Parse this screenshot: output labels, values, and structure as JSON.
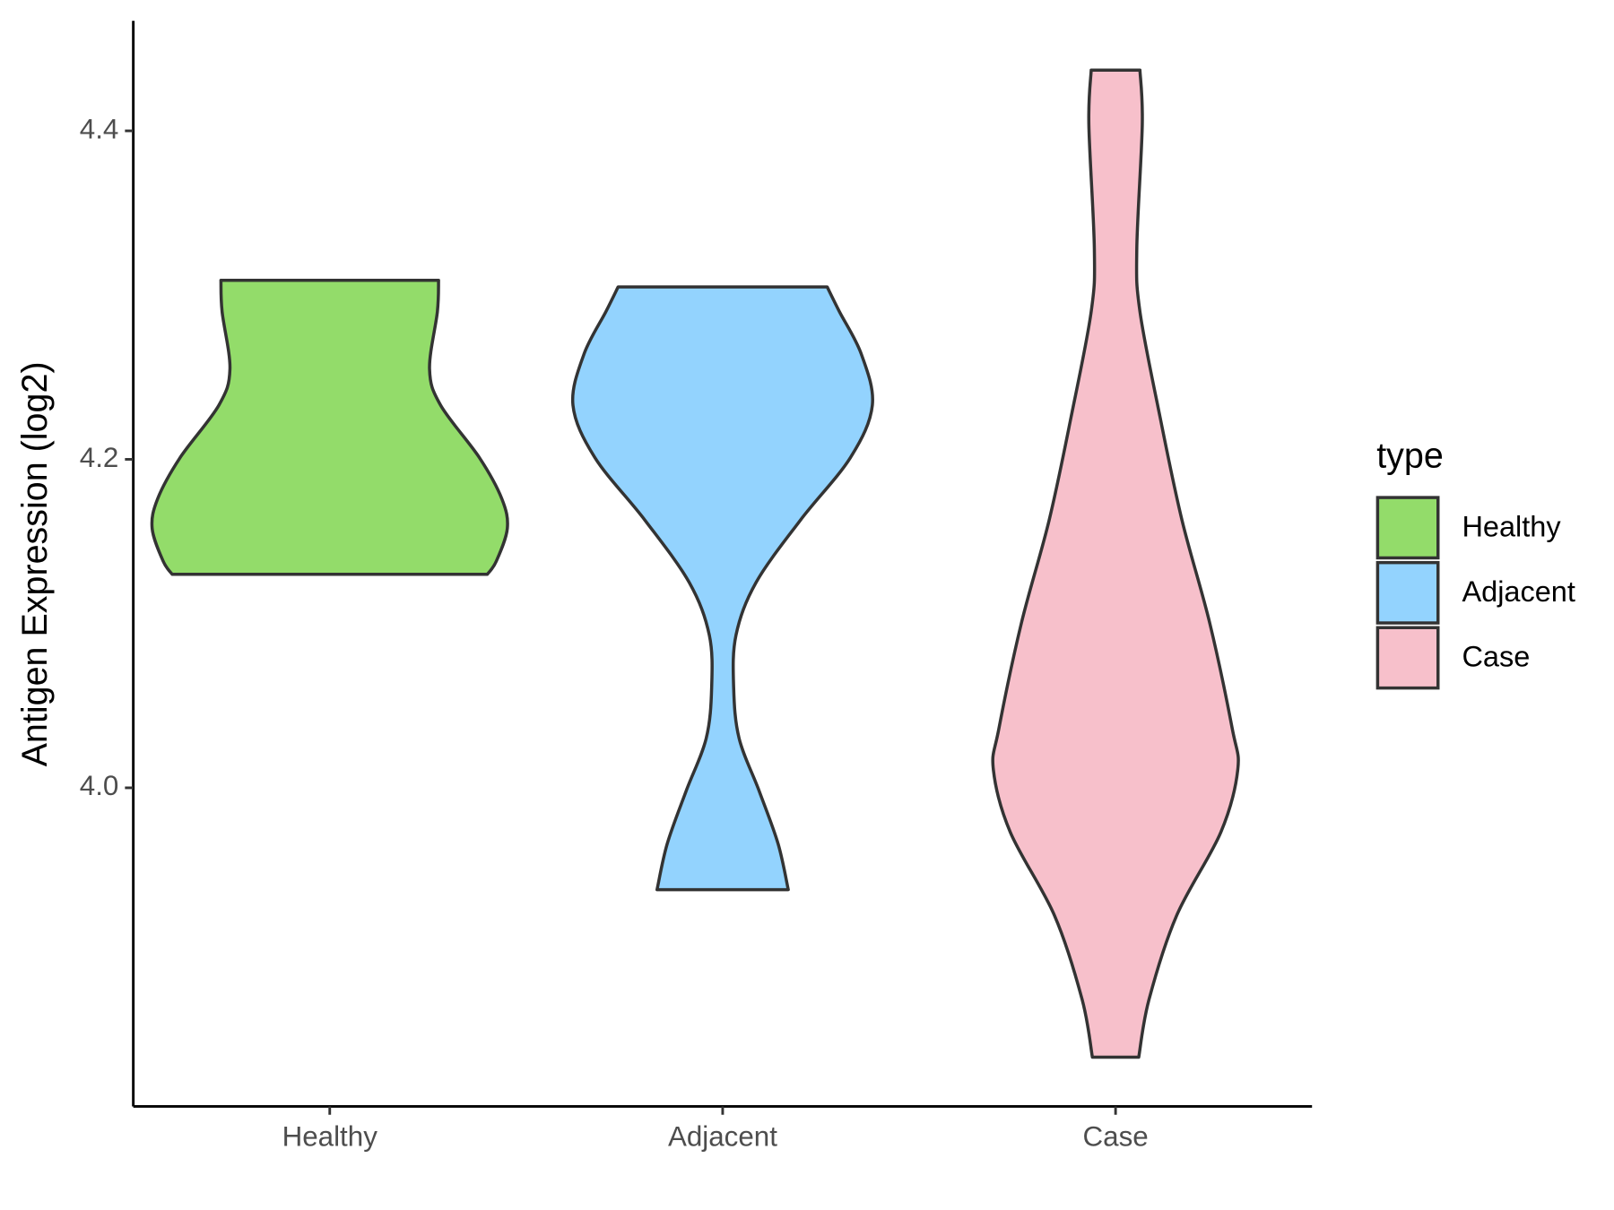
{
  "chart_data": {
    "type": "violin",
    "y_label": "Antigen Expression (log2)",
    "categories": [
      "Healthy",
      "Adjacent",
      "Case"
    ],
    "legend_title": "type",
    "legend_position": "right",
    "ylim": [
      3.806,
      4.467
    ],
    "yticks": [
      {
        "value": 4.0,
        "label": "4.0"
      },
      {
        "value": 4.2,
        "label": "4.2"
      },
      {
        "value": 4.4,
        "label": "4.4"
      }
    ],
    "series": [
      {
        "name": "Healthy",
        "color": "#93dc6a",
        "y": [
          4.309,
          4.29,
          4.255,
          4.233,
          4.201,
          4.176,
          4.158,
          4.138,
          4.13
        ],
        "density": [
          0.277,
          0.274,
          0.254,
          0.282,
          0.381,
          0.438,
          0.452,
          0.424,
          0.401
        ]
      },
      {
        "name": "Adjacent",
        "color": "#93d3fe",
        "y": [
          4.305,
          4.29,
          4.264,
          4.233,
          4.201,
          4.163,
          4.125,
          4.093,
          4.061,
          4.03,
          3.998,
          3.966,
          3.938
        ],
        "density": [
          0.266,
          0.297,
          0.353,
          0.381,
          0.325,
          0.198,
          0.085,
          0.034,
          0.028,
          0.042,
          0.093,
          0.141,
          0.167
        ]
      },
      {
        "name": "Case",
        "color": "#f7c0cb",
        "y": [
          4.437,
          4.404,
          4.328,
          4.29,
          4.226,
          4.163,
          4.1,
          4.036,
          4.011,
          3.973,
          3.922,
          3.871,
          3.836
        ],
        "density": [
          0.062,
          0.068,
          0.054,
          0.062,
          0.113,
          0.169,
          0.24,
          0.297,
          0.311,
          0.268,
          0.155,
          0.085,
          0.059
        ]
      }
    ]
  }
}
